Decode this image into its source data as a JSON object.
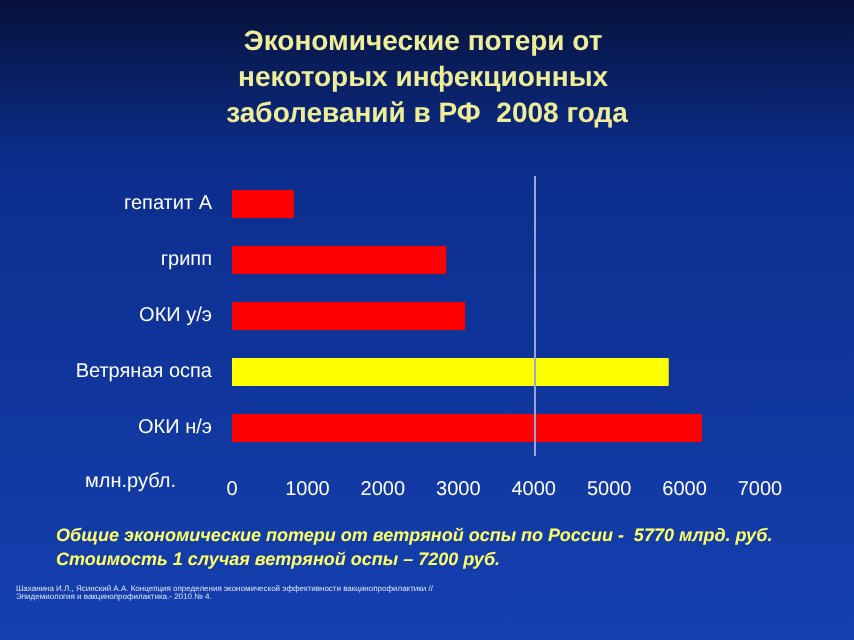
{
  "chart_data": {
    "type": "bar",
    "orientation": "horizontal",
    "title": "Экономические потери от некоторых инфекционных заболеваний в РФ  2008 года",
    "xlabel": "млн.рубл.",
    "categories": [
      "гепатит А",
      "грипп",
      "ОКИ у/э",
      "Ветряная оспа",
      "ОКИ н/э"
    ],
    "values": [
      820,
      2840,
      3090,
      5790,
      6230
    ],
    "colors": [
      "#ff0000",
      "#ff0000",
      "#ff0000",
      "#ffff00",
      "#ff0000"
    ],
    "xlim": [
      0,
      7000
    ],
    "xticks": [
      0,
      1000,
      2000,
      3000,
      4000,
      5000,
      6000,
      7000
    ],
    "grid": false,
    "ref_lines": [
      {
        "axis": "x",
        "value": 4000,
        "color": "#9aa6d8"
      }
    ],
    "annotations": [
      "Общие экономические потери от ветряной оспы по России -  5770 млрд. руб.",
      "Стоимость 1 случая ветряной оспы – 7200 руб.",
      "Шаханина И.Л., Ясинский А.А. Концепция определения экономической эффективности вакцинопрофилактики //Эпидемиология и вакцинопрофилактика.- 2010.№ 4."
    ]
  }
}
